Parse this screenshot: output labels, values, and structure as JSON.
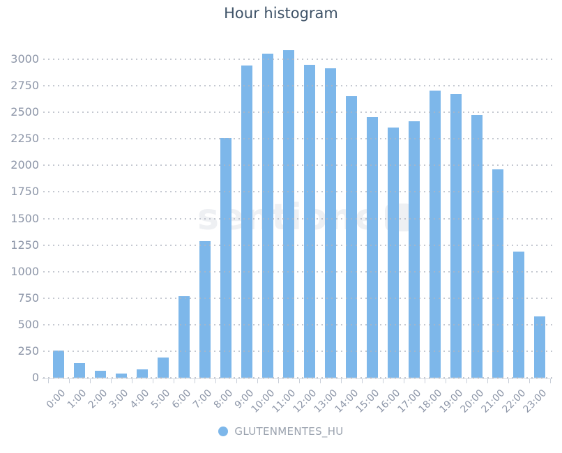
{
  "title": "Hour histogram",
  "watermark": "sentione",
  "legend": {
    "label": "GLUTENMENTES_HU",
    "marker_color": "#7db7ea"
  },
  "colors": {
    "bar": "#7db7ea",
    "title_text": "#3e5267",
    "axis_label_text": "#8d96a8",
    "legend_text": "#9aa2ae",
    "gridline": "#b0b6c1",
    "axis_line": "#d9dde4",
    "watermark": "#eef0f3",
    "background": "#ffffff"
  },
  "chart_data": {
    "type": "bar",
    "title": "Hour histogram",
    "categories": [
      "0:00",
      "1:00",
      "2:00",
      "3:00",
      "4:00",
      "5:00",
      "6:00",
      "7:00",
      "8:00",
      "9:00",
      "10:00",
      "11:00",
      "12:00",
      "13:00",
      "14:00",
      "15:00",
      "16:00",
      "17:00",
      "18:00",
      "19:00",
      "20:00",
      "21:00",
      "22:00",
      "23:00"
    ],
    "series": [
      {
        "name": "GLUTENMENTES_HU",
        "values": [
          255,
          140,
          65,
          40,
          80,
          190,
          770,
          1285,
          2260,
          2940,
          3055,
          3085,
          2945,
          2915,
          2655,
          2455,
          2355,
          2415,
          2705,
          2670,
          2475,
          1960,
          1185,
          575
        ]
      }
    ],
    "xlabel": "",
    "ylabel": "",
    "ylim": [
      0,
      3000
    ],
    "yticks": [
      0,
      250,
      500,
      750,
      1000,
      1250,
      1500,
      1750,
      2000,
      2250,
      2500,
      2750,
      3000
    ],
    "grid": "horizontal-dotted",
    "x_label_rotation": -45,
    "legend_position": "bottom-center"
  }
}
